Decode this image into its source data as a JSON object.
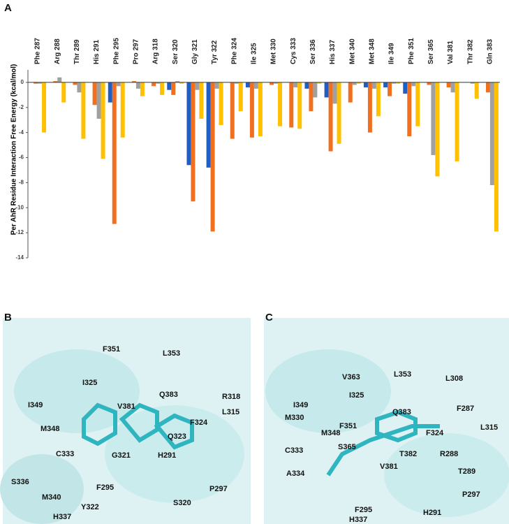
{
  "chart_data": {
    "type": "bar",
    "y_label": "Per AhR Residue Interaction Free Energy (kcal/mol)",
    "categories": [
      "Phe 287",
      "Arg 288",
      "Thr 289",
      "His 291",
      "Phe 295",
      "Pro 297",
      "Arg 318",
      "Ser 320",
      "Gly 321",
      "Tyr 322",
      "Phe 324",
      "Ile 325",
      "Met 330",
      "Cys 333",
      "Ser 336",
      "His 337",
      "Met 340",
      "Met 348",
      "Ile 349",
      "Phe 351",
      "Ser 365",
      "Val 381",
      "Thr 382",
      "Gln 383"
    ],
    "series": [
      {
        "color": "#1f5fc4",
        "values": [
          0,
          0,
          0,
          0,
          -1.6,
          0,
          0,
          -0.6,
          -6.6,
          -6.8,
          0,
          -0.4,
          0,
          0,
          -0.5,
          -1.2,
          0,
          -0.4,
          -0.4,
          -0.9,
          0,
          0,
          0,
          0
        ]
      },
      {
        "color": "#f07020",
        "values": [
          -0.1,
          0.1,
          -0.2,
          -1.8,
          -11.3,
          0.1,
          -0.3,
          -1.0,
          -9.5,
          -11.9,
          -4.5,
          -4.4,
          -0.2,
          -3.6,
          -2.3,
          -5.5,
          -1.6,
          -4.0,
          -1.1,
          -4.3,
          -0.2,
          -0.4,
          0,
          -0.8
        ]
      },
      {
        "color": "#a0a0a0",
        "values": [
          -0.1,
          0.4,
          -0.8,
          -2.9,
          -0.3,
          -0.5,
          -0.1,
          0.1,
          -0.6,
          -0.5,
          -0.1,
          -0.5,
          -0.1,
          -0.4,
          -1.2,
          -1.7,
          -0.2,
          -0.5,
          -0.1,
          -0.3,
          -5.8,
          -0.8,
          -0.1,
          -8.2
        ]
      },
      {
        "color": "#ffc000",
        "values": [
          -4.0,
          -1.6,
          -4.5,
          -6.1,
          -4.4,
          -1.1,
          -1.0,
          -0.1,
          -2.9,
          -3.4,
          -2.3,
          -4.3,
          -3.5,
          -3.7,
          -0.1,
          -4.9,
          -0.1,
          -2.7,
          -0.1,
          -3.5,
          -7.5,
          -6.3,
          -1.3,
          -11.9
        ]
      }
    ],
    "ylim": [
      -14,
      1
    ],
    "yticks": [
      0,
      -2,
      -4,
      -6,
      -8,
      -10,
      -12,
      -14
    ]
  },
  "panels": [
    "A",
    "B",
    "C"
  ],
  "panel_b_labels": [
    "F351",
    "L353",
    "I349",
    "I325",
    "Q383",
    "R318",
    "V381",
    "L315",
    "M348",
    "F324",
    "Q323",
    "C333",
    "G321",
    "H291",
    "S336",
    "M340",
    "F295",
    "P297",
    "Y322",
    "S320",
    "H337"
  ],
  "panel_c_labels": [
    "I349",
    "V363",
    "L353",
    "L308",
    "I325",
    "Q383",
    "F287",
    "M330",
    "F351",
    "M348",
    "L315",
    "S365",
    "F324",
    "C333",
    "T382",
    "R288",
    "V381",
    "T289",
    "A334",
    "P297",
    "F295",
    "H291",
    "H337"
  ]
}
